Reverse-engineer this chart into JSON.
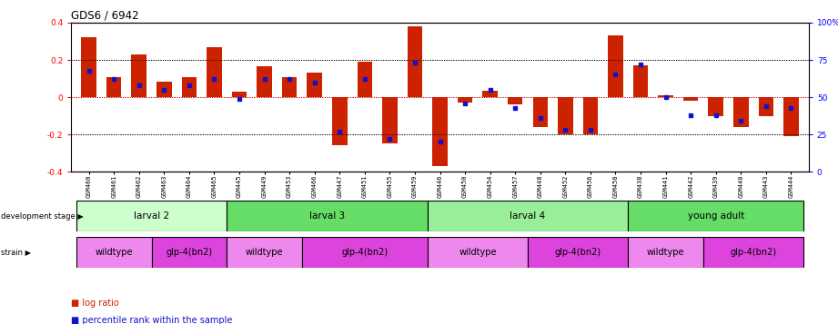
{
  "title": "GDS6 / 6942",
  "samples": [
    "GSM460",
    "GSM461",
    "GSM462",
    "GSM463",
    "GSM464",
    "GSM465",
    "GSM445",
    "GSM449",
    "GSM453",
    "GSM466",
    "GSM447",
    "GSM451",
    "GSM455",
    "GSM459",
    "GSM446",
    "GSM450",
    "GSM454",
    "GSM457",
    "GSM448",
    "GSM452",
    "GSM456",
    "GSM458",
    "GSM438",
    "GSM441",
    "GSM442",
    "GSM439",
    "GSM440",
    "GSM443",
    "GSM444"
  ],
  "log_ratio": [
    0.32,
    0.11,
    0.23,
    0.085,
    0.11,
    0.27,
    0.03,
    0.165,
    0.11,
    0.13,
    -0.26,
    0.19,
    -0.25,
    0.38,
    -0.37,
    -0.03,
    0.035,
    -0.04,
    -0.16,
    -0.2,
    -0.2,
    0.33,
    0.17,
    0.01,
    -0.02,
    -0.1,
    -0.16,
    -0.1,
    -0.21
  ],
  "percentile": [
    68,
    62,
    58,
    55,
    58,
    62,
    49,
    62,
    62,
    60,
    27,
    62,
    22,
    73,
    20,
    46,
    55,
    43,
    36,
    28,
    28,
    65,
    72,
    50,
    38,
    38,
    34,
    44,
    43
  ],
  "groups": [
    {
      "label": "larval 2",
      "start": 0,
      "end": 6,
      "color": "#ccffcc"
    },
    {
      "label": "larval 3",
      "start": 6,
      "end": 14,
      "color": "#66dd66"
    },
    {
      "label": "larval 4",
      "start": 14,
      "end": 22,
      "color": "#99ee99"
    },
    {
      "label": "young adult",
      "start": 22,
      "end": 29,
      "color": "#66dd66"
    }
  ],
  "strains": [
    {
      "label": "wildtype",
      "start": 0,
      "end": 3,
      "color": "#ee88ee"
    },
    {
      "label": "glp-4(bn2)",
      "start": 3,
      "end": 6,
      "color": "#dd44dd"
    },
    {
      "label": "wildtype",
      "start": 6,
      "end": 9,
      "color": "#ee88ee"
    },
    {
      "label": "glp-4(bn2)",
      "start": 9,
      "end": 14,
      "color": "#dd44dd"
    },
    {
      "label": "wildtype",
      "start": 14,
      "end": 18,
      "color": "#ee88ee"
    },
    {
      "label": "glp-4(bn2)",
      "start": 18,
      "end": 22,
      "color": "#dd44dd"
    },
    {
      "label": "wildtype",
      "start": 22,
      "end": 25,
      "color": "#ee88ee"
    },
    {
      "label": "glp-4(bn2)",
      "start": 25,
      "end": 29,
      "color": "#dd44dd"
    }
  ],
  "group_boundaries": [
    6,
    14,
    22
  ],
  "ylim_left": [
    -0.4,
    0.4
  ],
  "ylim_right": [
    0,
    100
  ],
  "bar_color": "#cc2200",
  "dot_color": "#1111cc",
  "zero_line_color": "#cc0000",
  "left_yticks": [
    -0.4,
    -0.2,
    0.0,
    0.2,
    0.4
  ],
  "left_yticklabels": [
    "-0.4",
    "-0.2",
    "0",
    "0.2",
    "0.4"
  ],
  "right_yticks": [
    0,
    25,
    50,
    75,
    100
  ],
  "right_yticklabels": [
    "0",
    "25",
    "50",
    "75",
    "100%"
  ]
}
